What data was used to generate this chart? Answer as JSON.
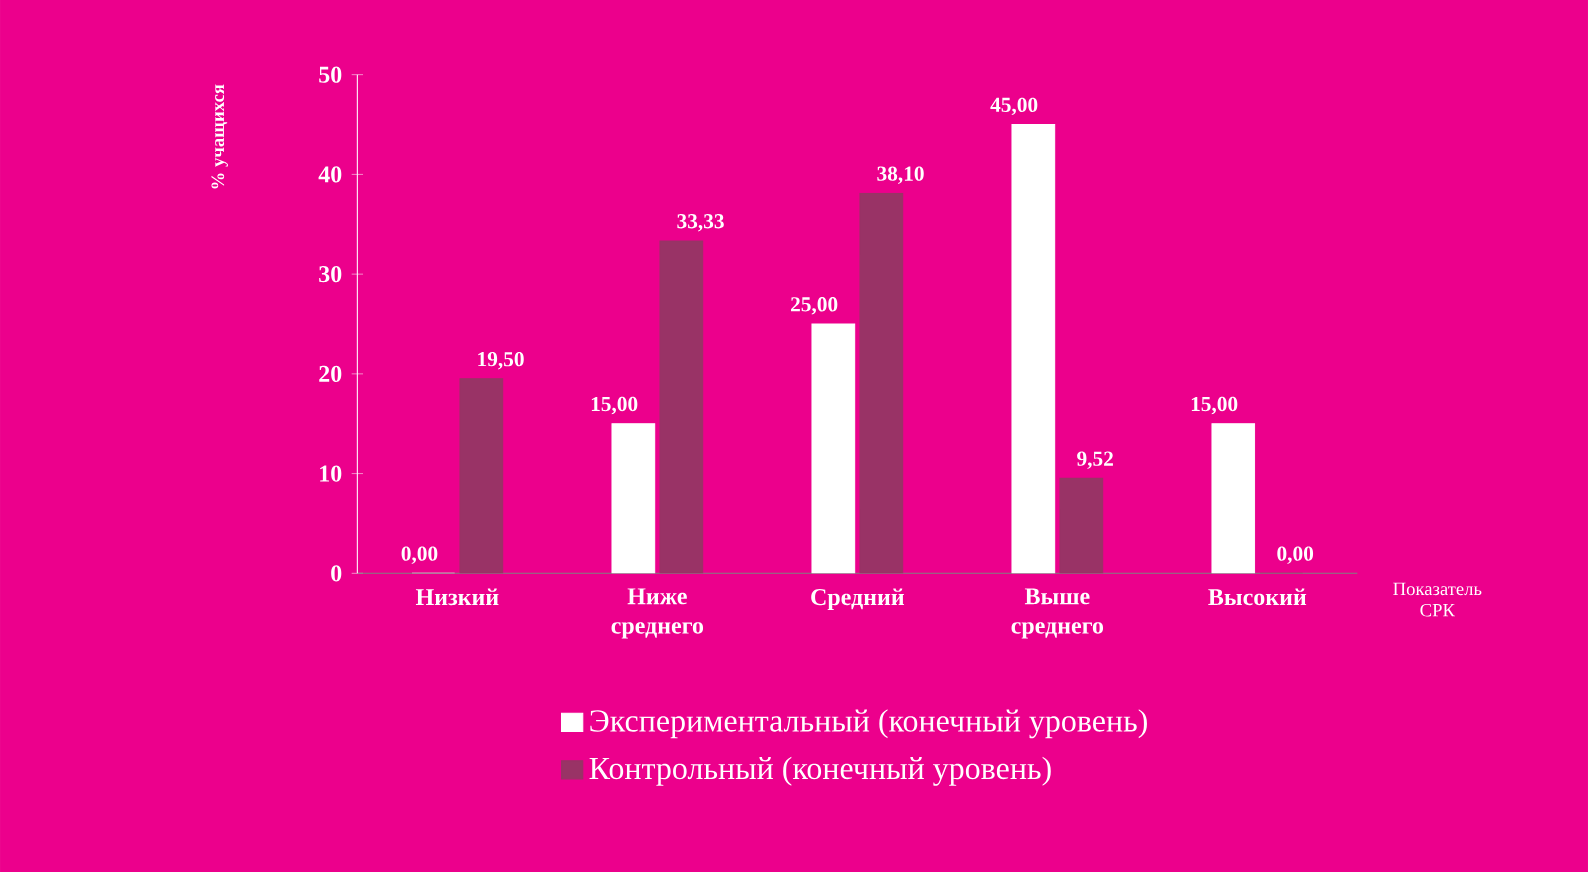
{
  "chart_data": {
    "type": "bar",
    "categories": [
      "Низкий",
      "Ниже среднего",
      "Средний",
      "Выше среднего",
      "Высокий"
    ],
    "xlabel": "Показатель СРК",
    "ylabel": "% учащихся",
    "series": [
      {
        "name": "Экспериментальный (конечный уровень)",
        "color": "#ffffff",
        "values": [
          0,
          15,
          25,
          45,
          15
        ],
        "value_labels": [
          "0,00",
          "15,00",
          "25,00",
          "45,00",
          "15,00"
        ]
      },
      {
        "name": "Контрольный (конечный уровень)",
        "color": "#993366",
        "values": [
          19.5,
          33.33,
          38.1,
          9.52,
          0
        ],
        "value_labels": [
          "19,50",
          "33,33",
          "38,10",
          "9,52",
          "0,00"
        ]
      }
    ],
    "ylim": [
      0,
      50
    ],
    "yticks": [
      0,
      10,
      20,
      30,
      40,
      50
    ],
    "legend": "bottom"
  }
}
